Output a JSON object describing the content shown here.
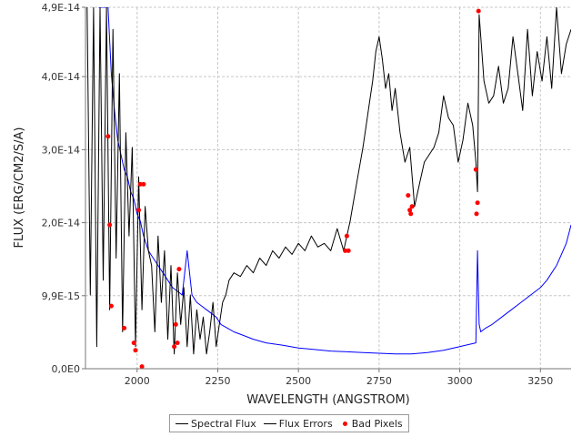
{
  "chart_data": {
    "type": "line",
    "xlabel": "WAVELENGTH (ANGSTROM)",
    "ylabel": "FLUX (ERG/CM2/S/A)",
    "xlim": [
      1840,
      3345
    ],
    "ylim": [
      0,
      4.9e-14
    ],
    "x_ticks": [
      {
        "value": 2000,
        "label": "2000"
      },
      {
        "value": 2250,
        "label": "2250"
      },
      {
        "value": 2500,
        "label": "2500"
      },
      {
        "value": 2750,
        "label": "2750"
      },
      {
        "value": 3000,
        "label": "3000"
      },
      {
        "value": 3250,
        "label": "3250"
      }
    ],
    "y_ticks": [
      {
        "value": 0,
        "label": "0,0E0"
      },
      {
        "value": 9.9e-15,
        "label": "9,9E-15"
      },
      {
        "value": 1.98e-14,
        "label": "2,0E-14"
      },
      {
        "value": 2.97e-14,
        "label": "3,0E-14"
      },
      {
        "value": 3.96e-14,
        "label": "4,0E-14"
      },
      {
        "value": 4.9e-14,
        "label": "4,9E-14"
      }
    ],
    "grid": true,
    "legend_position": "bottom",
    "series": [
      {
        "name": "Spectral Flux",
        "color": "#000000",
        "x": [
          1845,
          1855,
          1865,
          1875,
          1885,
          1895,
          1905,
          1915,
          1925,
          1935,
          1945,
          1955,
          1965,
          1975,
          1985,
          1995,
          2005,
          2015,
          2025,
          2035,
          2045,
          2055,
          2065,
          2075,
          2085,
          2095,
          2105,
          2115,
          2125,
          2135,
          2145,
          2155,
          2165,
          2175,
          2185,
          2195,
          2205,
          2215,
          2225,
          2235,
          2245,
          2255,
          2265,
          2275,
          2285,
          2300,
          2320,
          2340,
          2360,
          2380,
          2400,
          2420,
          2440,
          2460,
          2480,
          2500,
          2520,
          2540,
          2560,
          2580,
          2600,
          2620,
          2640,
          2660,
          2680,
          2700,
          2710,
          2720,
          2730,
          2740,
          2750,
          2760,
          2770,
          2780,
          2790,
          2800,
          2815,
          2830,
          2845,
          2860,
          2875,
          2890,
          2905,
          2920,
          2935,
          2950,
          2965,
          2980,
          2995,
          3010,
          3025,
          3040,
          3050,
          3055,
          3060,
          3065,
          3075,
          3090,
          3105,
          3120,
          3135,
          3150,
          3165,
          3180,
          3195,
          3210,
          3225,
          3240,
          3255,
          3270,
          3285,
          3300,
          3315,
          3330,
          3345
        ],
        "y": [
          4.9e-14,
          1e-14,
          4.9e-14,
          3e-15,
          4.9e-14,
          1.2e-14,
          4.9e-14,
          8e-15,
          4.6e-14,
          1.5e-14,
          4e-14,
          5e-15,
          3.2e-14,
          1.8e-14,
          3e-14,
          3e-15,
          2.6e-14,
          8e-15,
          2.2e-14,
          1.6e-14,
          1.4e-14,
          5e-15,
          1.8e-14,
          9e-15,
          1.6e-14,
          4e-15,
          1.4e-14,
          2e-15,
          1.3e-14,
          6e-15,
          1.1e-14,
          3e-15,
          1e-14,
          2e-15,
          8e-15,
          4e-15,
          7e-15,
          2e-15,
          5e-15,
          9e-15,
          3e-15,
          6e-15,
          9e-15,
          1e-14,
          1.2e-14,
          1.3e-14,
          1.25e-14,
          1.4e-14,
          1.3e-14,
          1.5e-14,
          1.4e-14,
          1.6e-14,
          1.5e-14,
          1.65e-14,
          1.55e-14,
          1.7e-14,
          1.6e-14,
          1.8e-14,
          1.65e-14,
          1.7e-14,
          1.6e-14,
          1.9e-14,
          1.6e-14,
          2e-14,
          2.5e-14,
          3e-14,
          3.3e-14,
          3.6e-14,
          3.9e-14,
          4.3e-14,
          4.5e-14,
          4.2e-14,
          3.8e-14,
          4e-14,
          3.5e-14,
          3.8e-14,
          3.2e-14,
          2.8e-14,
          3e-14,
          2.2e-14,
          2.5e-14,
          2.8e-14,
          2.9e-14,
          3e-14,
          3.2e-14,
          3.7e-14,
          3.4e-14,
          3.3e-14,
          2.8e-14,
          3.1e-14,
          3.6e-14,
          3.3e-14,
          2.8e-14,
          2.4e-14,
          4.8e-14,
          4.5e-14,
          3.9e-14,
          3.6e-14,
          3.7e-14,
          4.1e-14,
          3.6e-14,
          3.8e-14,
          4.5e-14,
          4e-14,
          3.5e-14,
          4.6e-14,
          3.7e-14,
          4.3e-14,
          3.9e-14,
          4.5e-14,
          3.8e-14,
          4.9e-14,
          4e-14,
          4.4e-14,
          4.6e-14
        ]
      },
      {
        "name": "Flux Errors",
        "color": "#0000ff",
        "x": [
          1880,
          1890,
          1900,
          1910,
          1920,
          1930,
          1940,
          1950,
          1960,
          1970,
          1980,
          1990,
          2000,
          2010,
          2020,
          2035,
          2050,
          2065,
          2080,
          2095,
          2110,
          2125,
          2140,
          2155,
          2170,
          2185,
          2200,
          2215,
          2230,
          2245,
          2260,
          2280,
          2300,
          2330,
          2360,
          2400,
          2450,
          2500,
          2550,
          2600,
          2650,
          2700,
          2750,
          2800,
          2850,
          2900,
          2950,
          3000,
          3030,
          3050,
          3055,
          3060,
          3065,
          3080,
          3100,
          3130,
          3160,
          3190,
          3220,
          3250,
          3270,
          3285,
          3300,
          3315,
          3330,
          3345
        ],
        "y": [
          4.9e-14,
          4.9e-14,
          4.9e-14,
          4.9e-14,
          4e-14,
          3.5e-14,
          3.1e-14,
          2.9e-14,
          2.7e-14,
          2.6e-14,
          2.4e-14,
          2.3e-14,
          2.1e-14,
          2e-14,
          1.8e-14,
          1.6e-14,
          1.5e-14,
          1.4e-14,
          1.3e-14,
          1.2e-14,
          1.1e-14,
          1.05e-14,
          1e-14,
          1.6e-14,
          1e-14,
          9e-15,
          8.5e-15,
          8e-15,
          7.5e-15,
          7e-15,
          6e-15,
          5.5e-15,
          5e-15,
          4.5e-15,
          4e-15,
          3.5e-15,
          3.2e-15,
          2.8e-15,
          2.6e-15,
          2.4e-15,
          2.3e-15,
          2.2e-15,
          2.1e-15,
          2e-15,
          2e-15,
          2.2e-15,
          2.5e-15,
          3e-15,
          3.3e-15,
          3.5e-15,
          1.6e-14,
          6e-15,
          5e-15,
          5.5e-15,
          6e-15,
          7e-15,
          8e-15,
          9e-15,
          1e-14,
          1.1e-14,
          1.2e-14,
          1.3e-14,
          1.4e-14,
          1.55e-14,
          1.7e-14,
          1.95e-14
        ]
      },
      {
        "name": "Bad Pixels",
        "color": "#ff0000",
        "x": [
          1910,
          1915,
          1920,
          1960,
          1990,
          1995,
          2005,
          2010,
          2015,
          2020,
          2115,
          2120,
          2125,
          2130,
          2645,
          2650,
          2655,
          2840,
          2845,
          2848,
          2852,
          3050,
          3052,
          3055,
          3058
        ],
        "y": [
          3.15e-14,
          1.95e-14,
          8.5e-15,
          5.5e-15,
          3.5e-15,
          2.5e-15,
          2.15e-14,
          2.5e-14,
          3e-16,
          2.5e-14,
          3e-15,
          6e-15,
          3.5e-15,
          1.35e-14,
          1.6e-14,
          1.8e-14,
          1.6e-14,
          2.35e-14,
          2.15e-14,
          2.1e-14,
          2.2e-14,
          2.7e-14,
          2.1e-14,
          2.25e-14,
          4.85e-14
        ]
      }
    ]
  }
}
